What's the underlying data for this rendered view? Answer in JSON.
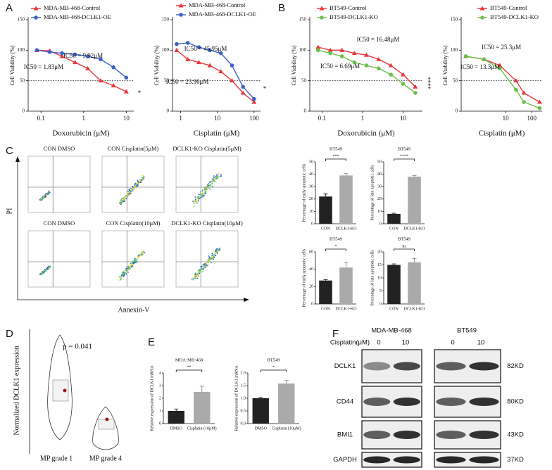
{
  "panel_labels": [
    "A",
    "B",
    "C",
    "D",
    "E",
    "F"
  ],
  "chart_data": [
    {
      "type": "line",
      "xlabel": "Doxorubicin (μM)",
      "ylabel": "Cell Viability (%)",
      "log_x": true,
      "xlim": [
        0.05,
        15
      ],
      "xticks": [
        0.1,
        1,
        10
      ],
      "ylim": [
        0,
        150
      ],
      "yticks": [
        0,
        50,
        100,
        150
      ],
      "hline": 50,
      "x": [
        0.08,
        0.16,
        0.31,
        0.63,
        1.25,
        2.5,
        5,
        10
      ],
      "series": [
        {
          "name": "MDA-MB-468-Control",
          "color": "#e8363a",
          "marker": "triangle",
          "values": [
            100,
            99,
            90,
            80,
            70,
            50,
            42,
            32
          ]
        },
        {
          "name": "MDA-MB-468-DCLK1-OE",
          "color": "#3b62c4",
          "marker": "circle",
          "values": [
            100,
            97,
            95,
            93,
            90,
            85,
            72,
            55
          ]
        }
      ],
      "annotations": [
        "IC50 = 9.92μM",
        "IC50 = 1.83μM",
        "*"
      ]
    },
    {
      "type": "line",
      "xlabel": "Cisplatin (μM)",
      "ylabel": "Cell Viability (%)",
      "log_x": true,
      "xlim": [
        0.6,
        150
      ],
      "xticks": [
        1,
        10,
        100
      ],
      "ylim": [
        0,
        150
      ],
      "yticks": [
        0,
        50,
        100,
        150
      ],
      "hline": 50,
      "x": [
        0.78,
        1.56,
        3.13,
        6.25,
        12.5,
        25,
        50,
        100
      ],
      "series": [
        {
          "name": "MDA-MB-468-Control",
          "color": "#e8363a",
          "marker": "triangle",
          "values": [
            100,
            85,
            80,
            75,
            65,
            50,
            30,
            15
          ]
        },
        {
          "name": "MDA-MB-468-DCLK1-OE",
          "color": "#3b62c4",
          "marker": "circle",
          "values": [
            110,
            112,
            105,
            100,
            95,
            75,
            40,
            20
          ]
        }
      ],
      "annotations": [
        "IC50 = 45.95μM",
        "IC50 = 23.96μM",
        "*"
      ]
    },
    {
      "type": "line",
      "xlabel": "Doxorubicin (μM)",
      "ylabel": "Cell Viability (%)",
      "log_x": true,
      "xlim": [
        0.05,
        30
      ],
      "xticks": [
        0.1,
        1,
        10
      ],
      "ylim": [
        0,
        150
      ],
      "yticks": [
        0,
        50,
        100,
        150
      ],
      "hline": 50,
      "x": [
        0.08,
        0.16,
        0.31,
        0.63,
        1.25,
        2.5,
        5,
        10,
        20
      ],
      "series": [
        {
          "name": "BT549-Control",
          "color": "#e8363a",
          "marker": "triangle",
          "values": [
            105,
            100,
            100,
            95,
            92,
            85,
            75,
            60,
            40
          ]
        },
        {
          "name": "BT549-DCLK1-KO",
          "color": "#6cc04a",
          "marker": "circle",
          "values": [
            100,
            95,
            90,
            80,
            75,
            70,
            60,
            45,
            30
          ]
        }
      ],
      "annotations": [
        "IC50 = 16.48μM",
        "IC50 = 6.69μM",
        "****"
      ]
    },
    {
      "type": "line",
      "xlabel": "Cisplatin (μM)",
      "ylabel": "Cell Viability (%)",
      "log_x": true,
      "xlim": [
        0.2,
        250
      ],
      "xticks": [
        10,
        100
      ],
      "ylim": [
        0,
        150
      ],
      "yticks": [
        0,
        50,
        100,
        150
      ],
      "hline": 50,
      "x": [
        0.3,
        1.5,
        6,
        25,
        50,
        200
      ],
      "series": [
        {
          "name": "BT549-Control",
          "color": "#e8363a",
          "marker": "triangle",
          "values": [
            90,
            85,
            75,
            50,
            30,
            15
          ]
        },
        {
          "name": "BT549-DCLK1-KO",
          "color": "#6cc04a",
          "marker": "circle",
          "values": [
            90,
            85,
            70,
            35,
            15,
            5
          ]
        }
      ],
      "annotations": [
        "IC50 = 25.3μM",
        "IC50 = 13.3μM"
      ]
    },
    {
      "type": "bar",
      "title": "BT549",
      "ylabel": "Percentage of early apoptotic cells",
      "categories": [
        "CON",
        "DCLK1-KO"
      ],
      "values": [
        22,
        39
      ],
      "errors": [
        2,
        1.5
      ],
      "colors": [
        "#222222",
        "#aaaaaa"
      ],
      "ylim": [
        0,
        50
      ],
      "yticks": [
        0,
        10,
        20,
        30,
        40,
        50
      ],
      "significance": "***"
    },
    {
      "type": "bar",
      "title": "BT549",
      "ylabel": "Percentage of late apoptotic cells",
      "categories": [
        "CON",
        "DCLK1-KO"
      ],
      "values": [
        8,
        38
      ],
      "errors": [
        0.5,
        1
      ],
      "colors": [
        "#222222",
        "#aaaaaa"
      ],
      "ylim": [
        0,
        50
      ],
      "yticks": [
        0,
        10,
        20,
        30,
        40,
        50
      ],
      "significance": "****"
    },
    {
      "type": "bar",
      "title": "BT549",
      "ylabel": "Percentage of early apoptotic cells",
      "categories": [
        "CON",
        "DCLK1-KO"
      ],
      "values": [
        27,
        42
      ],
      "errors": [
        1,
        6
      ],
      "colors": [
        "#222222",
        "#aaaaaa"
      ],
      "ylim": [
        0,
        60
      ],
      "yticks": [
        0,
        20,
        40,
        60
      ],
      "significance": "*"
    },
    {
      "type": "bar",
      "title": "BT549",
      "ylabel": "Percentage of late apoptotic cells",
      "categories": [
        "CON",
        "DCLK1-KO"
      ],
      "values": [
        15,
        16
      ],
      "errors": [
        0.4,
        1.5
      ],
      "colors": [
        "#222222",
        "#aaaaaa"
      ],
      "ylim": [
        0,
        20
      ],
      "yticks": [
        0,
        5,
        10,
        15,
        20
      ],
      "significance": "ns"
    },
    {
      "type": "bar",
      "title": "MDA-MB-468",
      "ylabel": "Relative expression of DCLK1 mRNA",
      "categories": [
        "DMSO",
        "Cisplatin (10μM)"
      ],
      "values": [
        1.0,
        2.5
      ],
      "errors": [
        0.15,
        0.45
      ],
      "colors": [
        "#222222",
        "#aaaaaa"
      ],
      "ylim": [
        0,
        4
      ],
      "yticks": [
        0,
        1,
        2,
        3,
        4
      ],
      "significance": "**"
    },
    {
      "type": "bar",
      "title": "BT549",
      "ylabel": "Relative expression of DCLK1 mRNA",
      "categories": [
        "DMSO",
        "Cisplatin (10μM)"
      ],
      "values": [
        1.0,
        1.58
      ],
      "errors": [
        0.04,
        0.12
      ],
      "colors": [
        "#222222",
        "#aaaaaa"
      ],
      "ylim": [
        0,
        2
      ],
      "yticks": [
        {
          "value": 0,
          "label": "0.0"
        },
        0.5,
        {
          "value": 1,
          "label": "1.0"
        },
        1.5,
        {
          "value": 2,
          "label": "2.0"
        }
      ],
      "significance": "*"
    }
  ],
  "flow": {
    "axis_y": "PI",
    "axis_x": "Annexin-V",
    "titles": [
      [
        "CON  DMSO",
        "CON Cisplatin(5μM)",
        "DCLK1-KO Cisplatin(5μM)"
      ],
      [
        "CON  DMSO",
        "CON Cisplatin(10μM)",
        "DCLK1-KO Cisplatin(10μM)"
      ]
    ]
  },
  "violin": {
    "ylabel": "Normalized DCLK1 expression",
    "p_text": "p = 0.041",
    "groups": [
      "MP grade 1",
      "MP grade 4"
    ]
  },
  "blot": {
    "groups": [
      "MDA-MB-468",
      "BT549"
    ],
    "treatment_label": "Cisplatin(μM)",
    "doses": [
      "0",
      "10",
      "0",
      "10"
    ],
    "rows": [
      {
        "protein": "DCLK1",
        "size": "82KD"
      },
      {
        "protein": "CD44",
        "size": "80KD"
      },
      {
        "protein": "BMI1",
        "size": "43KD"
      },
      {
        "protein": "GAPDH",
        "size": "37KD"
      }
    ]
  }
}
